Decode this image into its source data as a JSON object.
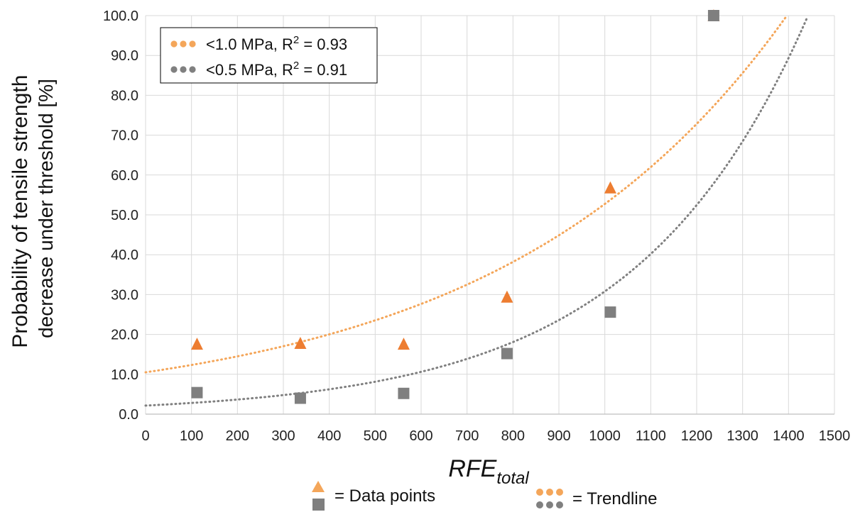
{
  "chart_data": {
    "type": "scatter",
    "ylabel_lines": [
      "Probability of tensile strength",
      "decrease under threshold [%]"
    ],
    "xlabel_main": "RFE",
    "xlabel_sub": "total",
    "xlim": [
      0,
      1500
    ],
    "ylim": [
      0,
      100
    ],
    "x_ticks": [
      "0",
      "100",
      "200",
      "300",
      "400",
      "500",
      "600",
      "700",
      "800",
      "900",
      "1000",
      "1100",
      "1200",
      "1300",
      "1400",
      "1500"
    ],
    "y_ticks": [
      "0.0",
      "10.0",
      "20.0",
      "30.0",
      "40.0",
      "50.0",
      "60.0",
      "70.0",
      "80.0",
      "90.0",
      "100.0"
    ],
    "grid": true,
    "legend_position": "top-left",
    "series": [
      {
        "name": "<1.0 MPa",
        "marker": "triangle",
        "color": "#ED7D31",
        "trend_color": "#F4A65A",
        "x": [
          112,
          337,
          562,
          787,
          1012,
          1237
        ],
        "y": [
          17.6,
          17.8,
          17.6,
          29.4,
          56.8,
          100.0
        ],
        "trend": {
          "type": "exponential",
          "a": 10.5,
          "b": 0.001614
        },
        "legend_label": "<1.0 MPa, R",
        "legend_r2": " = 0.93"
      },
      {
        "name": "<0.5 MPa",
        "marker": "square",
        "color": "#7F7F7F",
        "trend_color": "#808080",
        "x": [
          112,
          337,
          562,
          787,
          1012,
          1237
        ],
        "y": [
          5.4,
          4.0,
          5.2,
          15.2,
          25.6,
          100.0
        ],
        "trend": {
          "type": "exponential",
          "a": 2.15,
          "b": 0.002662
        },
        "legend_label": "<0.5 MPa, R",
        "legend_r2": " = 0.91"
      }
    ],
    "notes": {
      "data_points": "= Data points",
      "trendline": "= Trendline"
    }
  }
}
